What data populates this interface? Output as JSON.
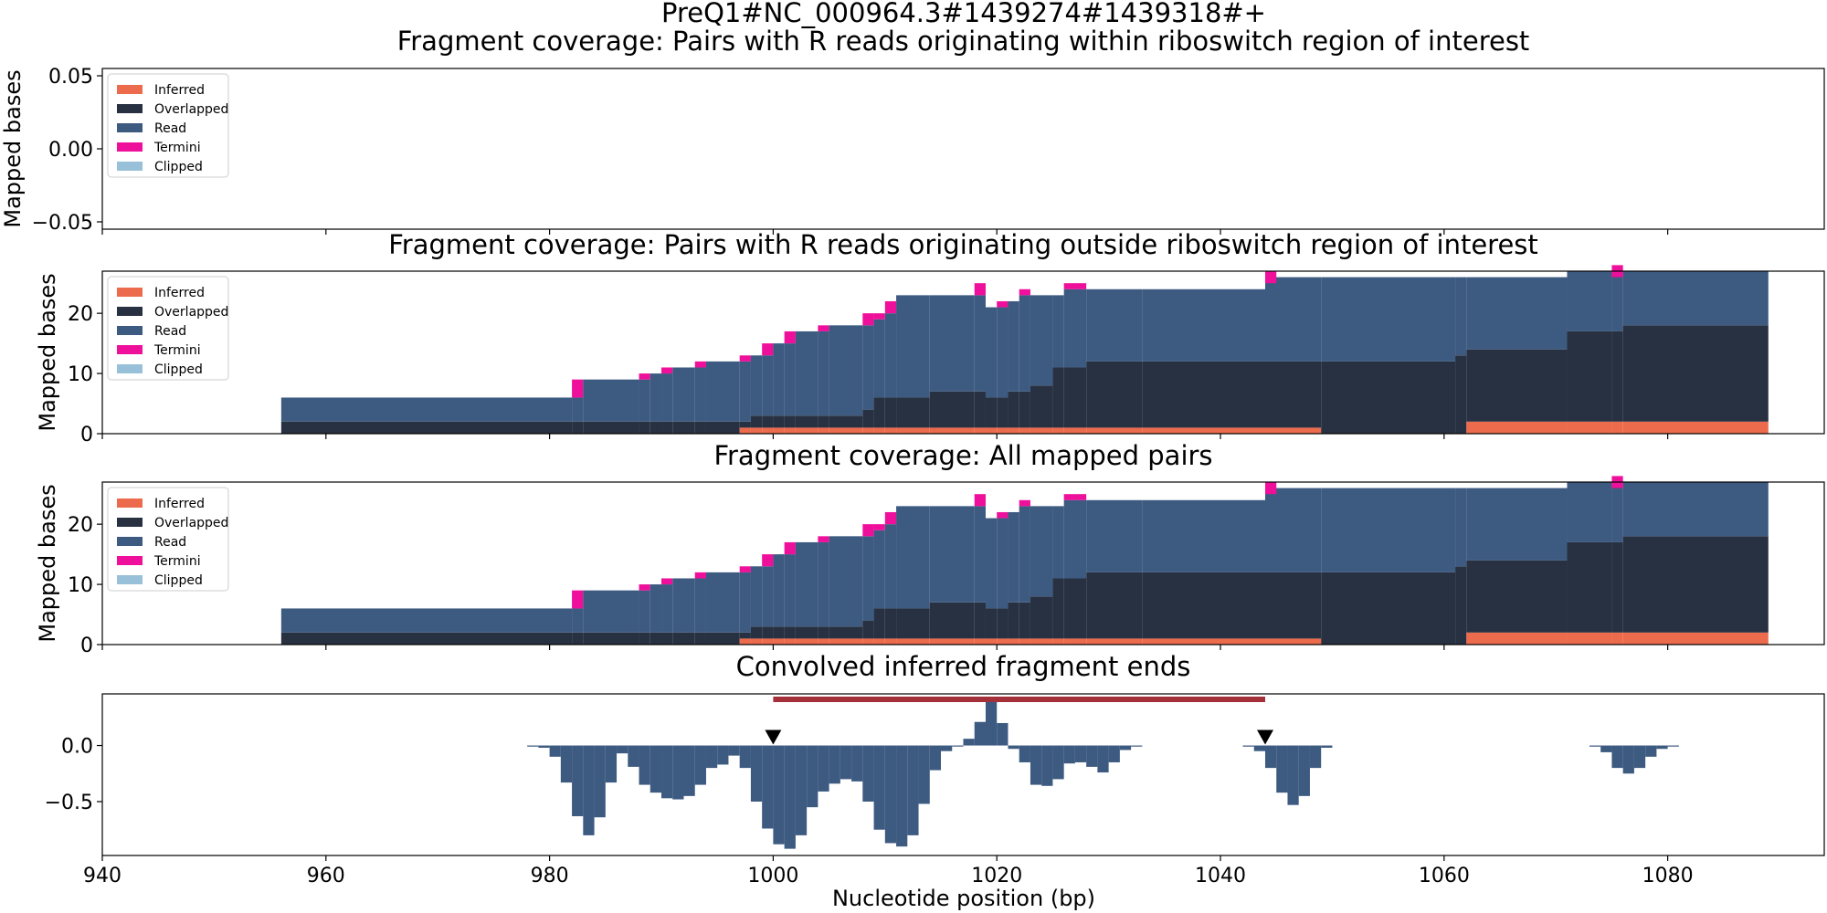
{
  "figure": {
    "suptitle": "PreQ1#NC_000964.3#1439274#1439318#+",
    "xlabel": "Nucleotide position (bp)"
  },
  "colors": {
    "inferred": "#ec6b4c",
    "overlapped": "#283142",
    "read": "#3d5a80",
    "termini": "#ee0f9a",
    "clipped": "#98c1d9",
    "region_bar": "#a4303a",
    "marker": "#000000"
  },
  "legend": {
    "placement": "upper left",
    "entries": [
      "Inferred",
      "Overlapped",
      "Read",
      "Termini",
      "Clipped"
    ]
  },
  "chart_data": [
    {
      "type": "area",
      "title": "Fragment coverage: Pairs with R reads originating within riboswitch region of interest",
      "ylabel": "Mapped bases",
      "xlim": [
        940,
        1094
      ],
      "ylim": [
        -0.055,
        0.055
      ],
      "yticks": [
        "0.05",
        "0.00",
        "−0.05"
      ],
      "ytick_values": [
        0.05,
        0.0,
        -0.05
      ],
      "show_xticklabels": false,
      "legend": true,
      "series": []
    },
    {
      "type": "area",
      "title": "Fragment coverage: Pairs with R reads originating outside riboswitch region of interest",
      "ylabel": "Mapped bases",
      "xlim": [
        940,
        1094
      ],
      "ylim": [
        0,
        27
      ],
      "yticks": [
        "0",
        "10",
        "20"
      ],
      "ytick_values": [
        0,
        10,
        20
      ],
      "show_xticklabels": false,
      "legend": true,
      "stacked": true,
      "series_source": "coverage"
    },
    {
      "type": "area",
      "title": "Fragment coverage: All mapped pairs",
      "ylabel": "Mapped bases",
      "xlim": [
        940,
        1094
      ],
      "ylim": [
        0,
        27
      ],
      "yticks": [
        "0",
        "10",
        "20"
      ],
      "ytick_values": [
        0,
        10,
        20
      ],
      "show_xticklabels": false,
      "legend": true,
      "stacked": true,
      "series_source": "coverage"
    },
    {
      "type": "bar",
      "title": "Convolved inferred fragment ends",
      "ylabel": "",
      "xlim": [
        940,
        1094
      ],
      "ylim": [
        -0.98,
        0.46
      ],
      "yticks": [
        "0.0",
        "−0.5"
      ],
      "ytick_values": [
        0.0,
        -0.5
      ],
      "xticks": [
        "940",
        "960",
        "980",
        "1000",
        "1020",
        "1040",
        "1060",
        "1080"
      ],
      "xtick_values": [
        940,
        960,
        980,
        1000,
        1020,
        1040,
        1060,
        1080
      ],
      "show_xticklabels": true,
      "legend": false,
      "region": [
        1000,
        1044
      ],
      "markers": [
        1000,
        1044
      ],
      "values": [
        [
          978,
          -0.01
        ],
        [
          979,
          -0.02
        ],
        [
          980,
          -0.1
        ],
        [
          981,
          -0.33
        ],
        [
          982,
          -0.63
        ],
        [
          983,
          -0.8
        ],
        [
          984,
          -0.64
        ],
        [
          985,
          -0.33
        ],
        [
          986,
          -0.07
        ],
        [
          987,
          -0.19
        ],
        [
          988,
          -0.35
        ],
        [
          989,
          -0.42
        ],
        [
          990,
          -0.47
        ],
        [
          991,
          -0.48
        ],
        [
          992,
          -0.45
        ],
        [
          993,
          -0.35
        ],
        [
          994,
          -0.2
        ],
        [
          995,
          -0.17
        ],
        [
          996,
          -0.09
        ],
        [
          997,
          -0.2
        ],
        [
          998,
          -0.5
        ],
        [
          999,
          -0.74
        ],
        [
          1000,
          -0.88
        ],
        [
          1001,
          -0.92
        ],
        [
          1002,
          -0.8
        ],
        [
          1003,
          -0.55
        ],
        [
          1004,
          -0.41
        ],
        [
          1005,
          -0.34
        ],
        [
          1006,
          -0.3
        ],
        [
          1007,
          -0.32
        ],
        [
          1008,
          -0.5
        ],
        [
          1009,
          -0.75
        ],
        [
          1010,
          -0.87
        ],
        [
          1011,
          -0.9
        ],
        [
          1012,
          -0.8
        ],
        [
          1013,
          -0.52
        ],
        [
          1014,
          -0.22
        ],
        [
          1015,
          -0.05
        ],
        [
          1016,
          0.0
        ],
        [
          1017,
          0.06
        ],
        [
          1018,
          0.21
        ],
        [
          1019,
          0.4
        ],
        [
          1020,
          0.2
        ],
        [
          1021,
          -0.03
        ],
        [
          1022,
          -0.15
        ],
        [
          1023,
          -0.35
        ],
        [
          1024,
          -0.36
        ],
        [
          1025,
          -0.3
        ],
        [
          1026,
          -0.16
        ],
        [
          1027,
          -0.15
        ],
        [
          1028,
          -0.19
        ],
        [
          1029,
          -0.24
        ],
        [
          1030,
          -0.15
        ],
        [
          1031,
          -0.04
        ],
        [
          1032,
          0.0
        ],
        [
          1042,
          -0.01
        ],
        [
          1043,
          -0.05
        ],
        [
          1044,
          -0.2
        ],
        [
          1045,
          -0.42
        ],
        [
          1046,
          -0.53
        ],
        [
          1047,
          -0.45
        ],
        [
          1048,
          -0.2
        ],
        [
          1049,
          -0.02
        ],
        [
          1073,
          -0.01
        ],
        [
          1074,
          -0.06
        ],
        [
          1075,
          -0.2
        ],
        [
          1076,
          -0.25
        ],
        [
          1077,
          -0.2
        ],
        [
          1078,
          -0.1
        ],
        [
          1079,
          -0.03
        ],
        [
          1080,
          0.0
        ]
      ]
    }
  ],
  "coverage": {
    "segments": [
      [
        956,
        982,
        0,
        2,
        4,
        0
      ],
      [
        982,
        983,
        0,
        2,
        4,
        3
      ],
      [
        983,
        988,
        0,
        2,
        7,
        0
      ],
      [
        988,
        989,
        0,
        2,
        7,
        1
      ],
      [
        989,
        990,
        0,
        2,
        8,
        0
      ],
      [
        990,
        991,
        0,
        2,
        8,
        1
      ],
      [
        991,
        993,
        0,
        2,
        9,
        0
      ],
      [
        993,
        994,
        0,
        2,
        9,
        1
      ],
      [
        994,
        997,
        0,
        2,
        10,
        0
      ],
      [
        997,
        998,
        1,
        1,
        10,
        1
      ],
      [
        998,
        999,
        1,
        2,
        10,
        0
      ],
      [
        999,
        1000,
        1,
        2,
        10,
        2
      ],
      [
        1000,
        1001,
        1,
        2,
        12,
        0
      ],
      [
        1001,
        1002,
        1,
        2,
        12,
        2
      ],
      [
        1002,
        1004,
        1,
        2,
        14,
        0
      ],
      [
        1004,
        1005,
        1,
        2,
        14,
        1
      ],
      [
        1005,
        1008,
        1,
        2,
        15,
        0
      ],
      [
        1008,
        1009,
        1,
        3,
        14,
        2
      ],
      [
        1009,
        1010,
        1,
        5,
        13,
        1
      ],
      [
        1010,
        1011,
        1,
        5,
        14,
        2
      ],
      [
        1011,
        1014,
        1,
        5,
        17,
        0
      ],
      [
        1014,
        1018,
        1,
        6,
        16,
        0
      ],
      [
        1018,
        1019,
        1,
        6,
        16,
        2
      ],
      [
        1019,
        1020,
        1,
        5,
        15,
        0
      ],
      [
        1020,
        1021,
        1,
        5,
        15,
        1
      ],
      [
        1021,
        1022,
        1,
        6,
        15,
        0
      ],
      [
        1022,
        1023,
        1,
        6,
        16,
        1
      ],
      [
        1023,
        1025,
        1,
        7,
        15,
        0
      ],
      [
        1025,
        1026,
        1,
        10,
        12,
        0
      ],
      [
        1026,
        1028,
        1,
        10,
        13,
        1
      ],
      [
        1028,
        1033,
        1,
        11,
        12,
        0
      ],
      [
        1033,
        1044,
        1,
        11,
        12,
        0
      ],
      [
        1044,
        1049,
        1,
        11,
        14,
        0
      ],
      [
        1049,
        1061,
        0,
        12,
        14,
        0
      ],
      [
        1061,
        1062,
        0,
        13,
        13,
        0
      ],
      [
        1062,
        1071,
        2,
        12,
        12,
        0
      ],
      [
        1071,
        1075,
        2,
        15,
        10,
        0
      ],
      [
        1075,
        1076,
        2,
        15,
        10,
        1
      ],
      [
        1076,
        1089,
        2,
        16,
        9,
        0
      ]
    ],
    "caps": [
      [
        1044,
        1045,
        25,
        27
      ],
      [
        1075,
        1076,
        26,
        27
      ]
    ]
  }
}
